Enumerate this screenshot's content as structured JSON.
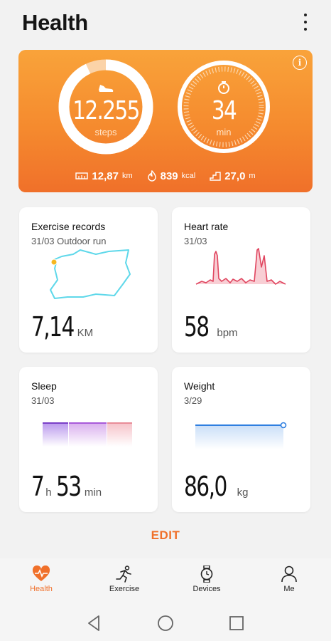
{
  "header": {
    "title": "Health"
  },
  "hero": {
    "steps": {
      "value": "12.255",
      "unit": "steps",
      "progress": 0.93
    },
    "minutes": {
      "value": "34",
      "unit": "min"
    },
    "distance": {
      "value": "12,87",
      "unit": "km"
    },
    "calories": {
      "value": "839",
      "unit": "kcal"
    },
    "floors": {
      "value": "27,0",
      "unit": "m"
    }
  },
  "cards": {
    "exercise": {
      "title": "Exercise records",
      "subtitle": "31/03  Outdoor run",
      "value": "7,14",
      "unit": "KM"
    },
    "heart": {
      "title": "Heart rate",
      "subtitle": "31/03",
      "value": "58",
      "unit": "bpm"
    },
    "sleep": {
      "title": "Sleep",
      "subtitle": "31/03",
      "hours": "7",
      "h_unit": "h",
      "minutes": "53",
      "m_unit": "min"
    },
    "weight": {
      "title": "Weight",
      "subtitle": "3/29",
      "value": "86,0",
      "unit": "kg"
    }
  },
  "edit_label": "EDIT",
  "tabs": [
    {
      "label": "Health",
      "icon": "heart-icon",
      "active": true
    },
    {
      "label": "Exercise",
      "icon": "running-icon",
      "active": false
    },
    {
      "label": "Devices",
      "icon": "watch-icon",
      "active": false
    },
    {
      "label": "Me",
      "icon": "person-icon",
      "active": false
    }
  ],
  "colors": {
    "accent": "#f0702a",
    "route": "#5fd8ea",
    "heart": "#e0455f",
    "sleep": "#8e4ad6",
    "weight": "#2f7fe0"
  }
}
